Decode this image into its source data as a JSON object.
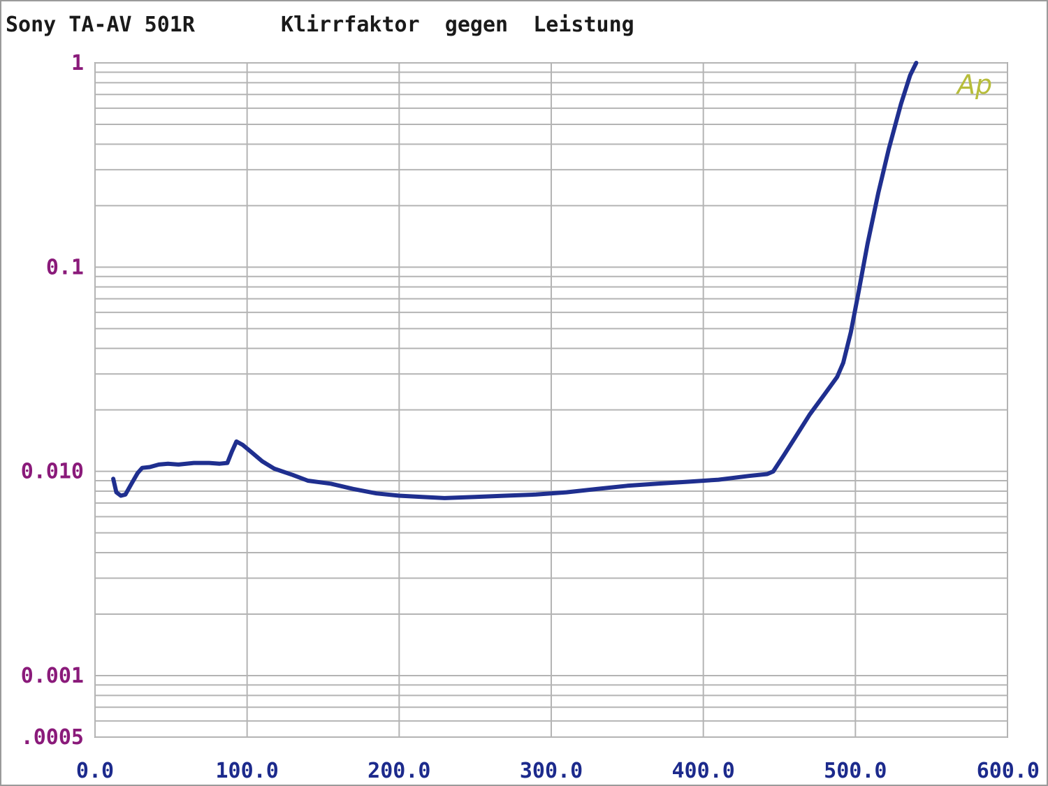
{
  "header": {
    "device": "Sony TA-AV 501R",
    "measurement": "Klirrfaktor  gegen  Leistung"
  },
  "brand_mark": "Ap",
  "chart_data": {
    "type": "line",
    "title": "Klirrfaktor  gegen  Leistung",
    "xlabel": "",
    "ylabel": "",
    "xlim": [
      0,
      600
    ],
    "ylim": [
      0.0005,
      1
    ],
    "yscale": "log",
    "grid": true,
    "x_ticks": [
      "0.0",
      "100.0",
      "200.0",
      "300.0",
      "400.0",
      "500.0",
      "600.0"
    ],
    "y_ticks": [
      {
        "value": 1,
        "label": "1"
      },
      {
        "value": 0.1,
        "label": "0.1"
      },
      {
        "value": 0.01,
        "label": "0.010"
      },
      {
        "value": 0.001,
        "label": "0.001"
      },
      {
        "value": 0.0005,
        "label": ".0005"
      }
    ],
    "series": [
      {
        "color": "#1f2f8f",
        "points": [
          [
            12,
            0.0092
          ],
          [
            14,
            0.0079
          ],
          [
            17,
            0.0076
          ],
          [
            20,
            0.0077
          ],
          [
            24,
            0.0087
          ],
          [
            28,
            0.0098
          ],
          [
            31,
            0.0104
          ],
          [
            36,
            0.0105
          ],
          [
            42,
            0.0108
          ],
          [
            48,
            0.0109
          ],
          [
            55,
            0.0108
          ],
          [
            65,
            0.011
          ],
          [
            75,
            0.011
          ],
          [
            82,
            0.0109
          ],
          [
            87,
            0.011
          ],
          [
            90,
            0.0125
          ],
          [
            93,
            0.014
          ],
          [
            97,
            0.0135
          ],
          [
            103,
            0.0124
          ],
          [
            110,
            0.0112
          ],
          [
            118,
            0.0103
          ],
          [
            130,
            0.0096
          ],
          [
            140,
            0.009
          ],
          [
            155,
            0.0087
          ],
          [
            170,
            0.0082
          ],
          [
            185,
            0.0078
          ],
          [
            200,
            0.0076
          ],
          [
            215,
            0.0075
          ],
          [
            230,
            0.0074
          ],
          [
            250,
            0.0075
          ],
          [
            270,
            0.0076
          ],
          [
            290,
            0.0077
          ],
          [
            310,
            0.0079
          ],
          [
            330,
            0.0082
          ],
          [
            350,
            0.0085
          ],
          [
            370,
            0.0087
          ],
          [
            390,
            0.0089
          ],
          [
            410,
            0.0091
          ],
          [
            430,
            0.0095
          ],
          [
            442,
            0.0097
          ],
          [
            446,
            0.01
          ],
          [
            453,
            0.012
          ],
          [
            460,
            0.0145
          ],
          [
            470,
            0.019
          ],
          [
            480,
            0.024
          ],
          [
            488,
            0.029
          ],
          [
            492,
            0.034
          ],
          [
            497,
            0.048
          ],
          [
            502,
            0.075
          ],
          [
            508,
            0.13
          ],
          [
            515,
            0.23
          ],
          [
            522,
            0.38
          ],
          [
            530,
            0.63
          ],
          [
            536,
            0.87
          ],
          [
            540,
            1.0
          ]
        ]
      }
    ]
  }
}
